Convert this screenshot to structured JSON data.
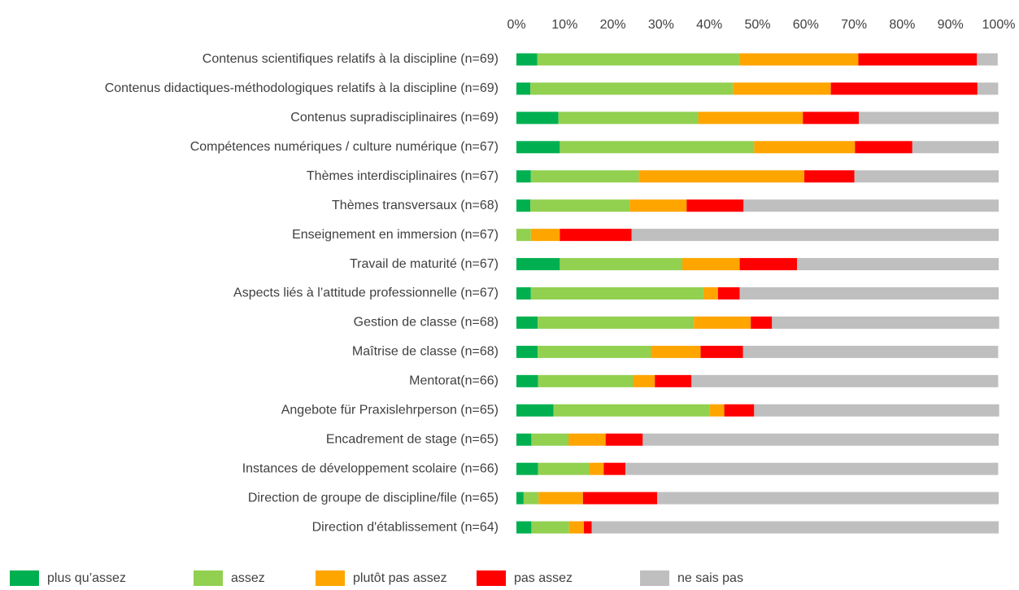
{
  "chart_data": {
    "type": "stacked_bar_horizontal",
    "categories": [
      "Contenus scientifiques relatifs à la discipline (n=69)",
      "Contenus didactiques-méthodologiques relatifs à la discipline (n=69)",
      "Contenus supradisciplinaires (n=69)",
      "Compétences numériques / culture numérique (n=67)",
      "Thèmes interdisciplinaires (n=67)",
      "Thèmes transversaux (n=68)",
      "Enseignement en immersion (n=67)",
      "Travail de maturité (n=67)",
      "Aspects liés à l’attitude professionnelle (n=67)",
      "Gestion de classe (n=68)",
      "Maîtrise de classe (n=68)",
      "Mentorat(n=66)",
      "Angebote für Praxislehrperson (n=65)",
      "Encadrement de stage (n=65)",
      "Instances de développement scolaire (n=66)",
      "Direction de groupe de discipline/file (n=65)",
      "Direction d'établissement (n=64)"
    ],
    "series": [
      {
        "name": "plus qu’assez",
        "color": "#00b050",
        "values": [
          4.3,
          2.9,
          8.7,
          9.0,
          3.0,
          2.9,
          0,
          9.0,
          3.0,
          4.4,
          4.4,
          4.5,
          7.7,
          3.1,
          4.5,
          1.5,
          3.1
        ]
      },
      {
        "name": "assez",
        "color": "#92d050",
        "values": [
          42.0,
          42.0,
          29.0,
          40.3,
          22.4,
          20.6,
          3.0,
          25.4,
          35.8,
          32.4,
          23.5,
          19.7,
          32.3,
          7.7,
          10.6,
          3.1,
          7.8
        ]
      },
      {
        "name": "plutôt pas assez",
        "color": "#ffa500",
        "values": [
          24.6,
          20.3,
          21.7,
          20.9,
          34.3,
          11.8,
          6.0,
          11.9,
          3.0,
          11.8,
          10.3,
          4.5,
          3.1,
          7.7,
          3.0,
          9.2,
          3.1
        ]
      },
      {
        "name": "pas assez",
        "color": "#ff0000",
        "values": [
          24.6,
          30.4,
          11.6,
          11.9,
          10.4,
          11.8,
          14.9,
          11.9,
          4.5,
          4.4,
          8.8,
          7.6,
          6.2,
          7.7,
          4.5,
          15.4,
          1.6
        ]
      },
      {
        "name": "ne sais pas",
        "color": "#bfbfbf",
        "values": [
          4.3,
          4.3,
          29.0,
          17.9,
          29.9,
          52.9,
          76.1,
          41.8,
          53.7,
          47.1,
          52.9,
          63.6,
          50.8,
          73.8,
          77.3,
          70.8,
          84.4
        ]
      }
    ],
    "xlim": [
      0,
      100
    ],
    "xticks": [
      {
        "value": 0,
        "label": "0%"
      },
      {
        "value": 10,
        "label": "10%"
      },
      {
        "value": 20,
        "label": "20%"
      },
      {
        "value": 30,
        "label": "30%"
      },
      {
        "value": 40,
        "label": "40%"
      },
      {
        "value": 50,
        "label": "50%"
      },
      {
        "value": 60,
        "label": "60%"
      },
      {
        "value": 70,
        "label": "70%"
      },
      {
        "value": 80,
        "label": "80%"
      },
      {
        "value": 90,
        "label": "90%"
      },
      {
        "value": 100,
        "label": "100%"
      }
    ],
    "legend": "bottom"
  }
}
